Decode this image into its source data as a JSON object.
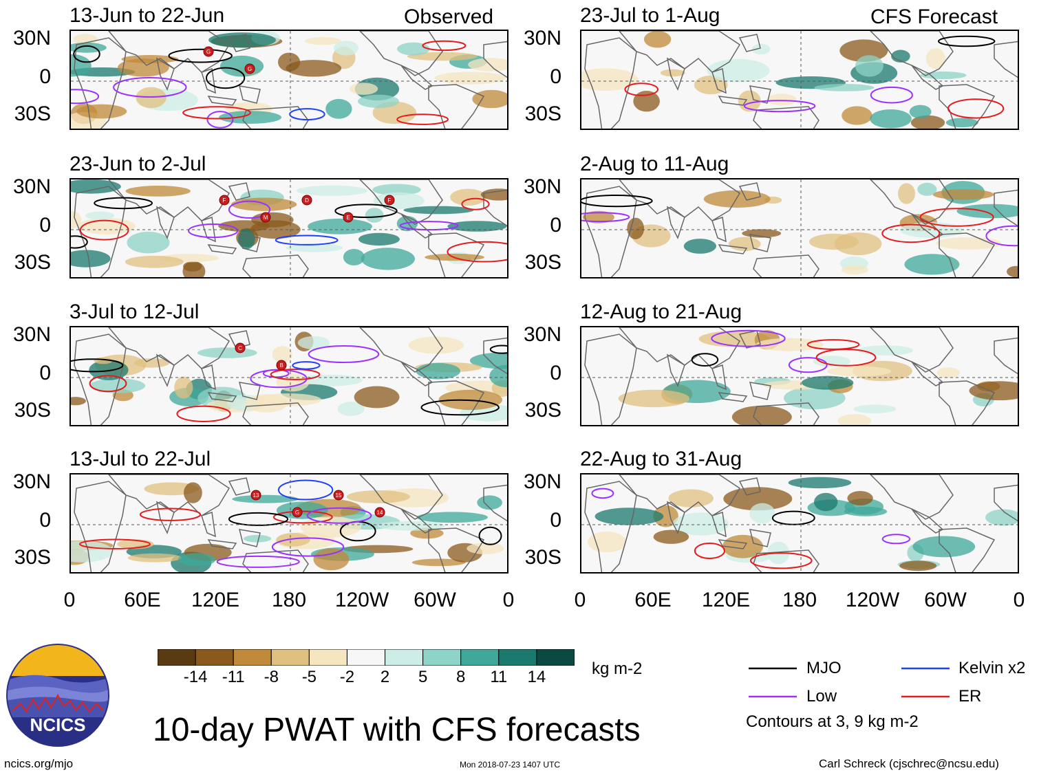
{
  "columns": {
    "left_header": "Observed",
    "right_header": "CFS Forecast"
  },
  "panels_left": [
    {
      "date_range": "13-Jun to 22-Jun"
    },
    {
      "date_range": "23-Jun to 2-Jul"
    },
    {
      "date_range": "3-Jul to 12-Jul"
    },
    {
      "date_range": "13-Jul to 22-Jul"
    }
  ],
  "panels_right": [
    {
      "date_range": "23-Jul to 1-Aug"
    },
    {
      "date_range": "2-Aug to 11-Aug"
    },
    {
      "date_range": "12-Aug to 21-Aug"
    },
    {
      "date_range": "22-Aug to 31-Aug"
    }
  ],
  "lat_labels": [
    "30N",
    "0",
    "30S"
  ],
  "lon_labels": [
    "0",
    "60E",
    "120E",
    "180",
    "120W",
    "60W",
    "0"
  ],
  "colorbar": {
    "colors": [
      "#5a3a10",
      "#8a5a1c",
      "#c08a3a",
      "#e0c080",
      "#f5e6c0",
      "#f7f7f7",
      "#cdeee6",
      "#8dd3c7",
      "#3fa89a",
      "#1a7a6e",
      "#0a4a42"
    ],
    "tick_labels": [
      "-14",
      "-11",
      "-8",
      "-5",
      "-2",
      "2",
      "5",
      "8",
      "11",
      "14"
    ],
    "units": "kg m-2"
  },
  "legend": {
    "items": [
      {
        "label": "MJO",
        "color": "#000000"
      },
      {
        "label": "Kelvin x2",
        "color": "#1f3fff"
      },
      {
        "label": "Low",
        "color": "#9b30ff"
      },
      {
        "label": "ER",
        "color": "#e41a1c"
      }
    ],
    "note": "Contours at 3, 9 kg m-2"
  },
  "logo": {
    "text": "NCICS"
  },
  "title": "10-day PWAT with CFS forecasts",
  "footer": {
    "website": "ncics.org/mjo",
    "timestamp": "Mon 2018-07-23 1407 UTC",
    "author": "Carl Schreck (cjschrec@ncsu.edu)"
  },
  "storm_markers": [
    {
      "panel": 0,
      "text": "G"
    },
    {
      "panel": 0,
      "text": "G"
    },
    {
      "panel": 1,
      "text": "F"
    },
    {
      "panel": 1,
      "text": "M"
    },
    {
      "panel": 1,
      "text": "D"
    },
    {
      "panel": 1,
      "text": "E"
    },
    {
      "panel": 1,
      "text": "F"
    },
    {
      "panel": 2,
      "text": "C"
    },
    {
      "panel": 2,
      "text": "B"
    },
    {
      "panel": 3,
      "text": "13"
    },
    {
      "panel": 3,
      "text": "G"
    },
    {
      "panel": 3,
      "text": "15"
    },
    {
      "panel": 3,
      "text": "14"
    }
  ]
}
